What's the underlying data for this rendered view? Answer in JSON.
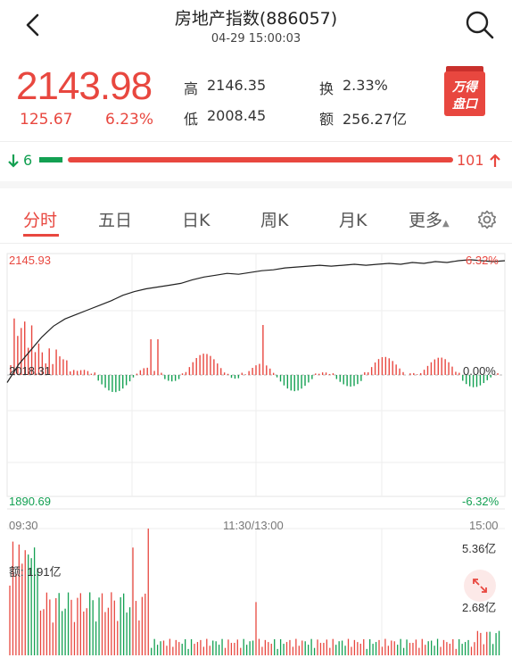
{
  "header": {
    "title": "房地产指数(886057)",
    "time": "04-29 15:00:03",
    "back_icon": "back-arrow-icon",
    "search_icon": "search-icon"
  },
  "quote": {
    "price": "2143.98",
    "change": "125.67",
    "change_pct": "6.23%",
    "high_label": "高",
    "high": "2146.35",
    "low_label": "低",
    "low": "2008.45",
    "turnover_label": "换",
    "turnover": "2.33%",
    "amount_label": "额",
    "amount": "256.27亿",
    "badge_line1": "万得",
    "badge_line2": "盘口"
  },
  "breadth": {
    "down_count": "6",
    "up_count": "101",
    "up_ratio": 0.944
  },
  "tabs": [
    {
      "label": "分时",
      "active": true
    },
    {
      "label": "五日",
      "active": false
    },
    {
      "label": "日K",
      "active": false
    },
    {
      "label": "周K",
      "active": false
    },
    {
      "label": "月K",
      "active": false
    },
    {
      "label": "更多",
      "active": false
    }
  ],
  "settings_icon": "gear-icon",
  "chart_data": {
    "type": "line",
    "price_axis": {
      "top": "2145.93",
      "mid": "2018.31",
      "bottom": "1890.69"
    },
    "pct_axis": {
      "top": "6.32%",
      "mid": "0.00%",
      "bottom": "-6.32%"
    },
    "ylim": [
      1890.69,
      2145.93
    ],
    "prev_close": 2018.31,
    "time_labels": [
      "09:30",
      "11:30/13:00",
      "15:00"
    ],
    "price_series": [
      2010,
      2030,
      2045,
      2060,
      2072,
      2080,
      2085,
      2090,
      2095,
      2100,
      2106,
      2110,
      2113,
      2115,
      2117,
      2119,
      2123,
      2126,
      2128,
      2130,
      2129,
      2131,
      2133,
      2134,
      2136,
      2137,
      2138,
      2139,
      2138,
      2139,
      2140,
      2139,
      2140,
      2141,
      2140,
      2142,
      2141,
      2143,
      2142,
      2144,
      2145,
      2144,
      2143,
      2144
    ],
    "volume_axis": {
      "max_label": "5.36亿",
      "mid_label": "2.68亿",
      "ymax": 5.36
    },
    "amount_label": "额:",
    "amount_value": "1.91亿"
  }
}
